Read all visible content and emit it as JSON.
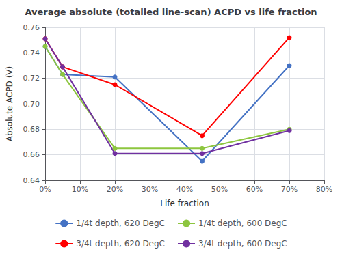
{
  "chart_data": {
    "type": "line",
    "title": "Average absolute (totalled line-scan) ACPD vs life fraction",
    "xlabel": "Life fraction",
    "ylabel": "Absolute ACPD (V)",
    "xlim": [
      0,
      0.8
    ],
    "ylim": [
      0.64,
      0.76
    ],
    "xticks": [
      {
        "value": 0,
        "label": "0%"
      },
      {
        "value": 0.1,
        "label": "10%"
      },
      {
        "value": 0.2,
        "label": "20%"
      },
      {
        "value": 0.3,
        "label": "30%"
      },
      {
        "value": 0.4,
        "label": "40%"
      },
      {
        "value": 0.5,
        "label": "50%"
      },
      {
        "value": 0.6,
        "label": "60%"
      },
      {
        "value": 0.7,
        "label": "70%"
      },
      {
        "value": 0.8,
        "label": "80%"
      }
    ],
    "yticks": [
      0.64,
      0.66,
      0.68,
      {
        "value": 0.7,
        "label": "0.70"
      },
      0.72,
      0.74,
      0.76
    ],
    "grid": true,
    "legend": "bottom",
    "marker": "circle",
    "x": [
      0.0,
      0.05,
      0.2,
      0.45,
      0.7
    ],
    "series": [
      {
        "name": "1/4t depth, 620 DegC",
        "color": "#4472C4",
        "values": [
          0.745,
          0.723,
          0.721,
          0.655,
          0.73
        ]
      },
      {
        "name": "1/4t depth, 600 DegC",
        "color": "#8DC63F",
        "values": [
          0.745,
          0.723,
          0.665,
          0.665,
          0.68
        ]
      },
      {
        "name": "3/4t depth, 620 DegC",
        "color": "#FF0000",
        "values": [
          0.751,
          0.729,
          0.715,
          0.675,
          0.752
        ]
      },
      {
        "name": "3/4t depth, 600 DegC",
        "color": "#7030A0",
        "values": [
          0.751,
          0.729,
          0.661,
          0.661,
          0.679
        ]
      }
    ]
  }
}
